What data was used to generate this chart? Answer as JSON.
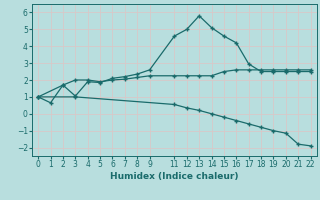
{
  "xlabel": "Humidex (Indice chaleur)",
  "bg_color": "#b8dede",
  "grid_color": "#d8c8c8",
  "line_color": "#1a6b6b",
  "line1_x": [
    0,
    1,
    2,
    3,
    4,
    5,
    6,
    7,
    8,
    9,
    11,
    12,
    13,
    14,
    15,
    16,
    17,
    18,
    19,
    20,
    21,
    22
  ],
  "line1_y": [
    1.0,
    0.65,
    1.7,
    1.05,
    1.9,
    1.85,
    2.1,
    2.2,
    2.35,
    2.6,
    4.6,
    5.0,
    5.8,
    5.1,
    4.6,
    4.2,
    2.95,
    2.5,
    2.5,
    2.5,
    2.5,
    2.5
  ],
  "line2_x": [
    0,
    2,
    3,
    4,
    5,
    6,
    7,
    8,
    9,
    11,
    12,
    13,
    14,
    15,
    16,
    17,
    18,
    19,
    20,
    21,
    22
  ],
  "line2_y": [
    1.0,
    1.7,
    2.0,
    2.0,
    1.9,
    2.0,
    2.05,
    2.15,
    2.25,
    2.25,
    2.25,
    2.25,
    2.25,
    2.5,
    2.6,
    2.6,
    2.6,
    2.6,
    2.6,
    2.6,
    2.6
  ],
  "line3_x": [
    0,
    3,
    11,
    12,
    13,
    14,
    15,
    16,
    17,
    18,
    19,
    20,
    21,
    22
  ],
  "line3_y": [
    1.0,
    1.0,
    0.55,
    0.35,
    0.2,
    0.0,
    -0.2,
    -0.4,
    -0.6,
    -0.8,
    -1.0,
    -1.15,
    -1.8,
    -1.9
  ],
  "xlim": [
    -0.5,
    22.5
  ],
  "ylim": [
    -2.5,
    6.5
  ],
  "yticks": [
    -2,
    -1,
    0,
    1,
    2,
    3,
    4,
    5,
    6
  ],
  "xticks": [
    0,
    1,
    2,
    3,
    4,
    5,
    6,
    7,
    8,
    9,
    11,
    12,
    13,
    14,
    15,
    16,
    17,
    18,
    19,
    20,
    21,
    22
  ],
  "tick_fontsize": 5.5,
  "xlabel_fontsize": 6.5
}
